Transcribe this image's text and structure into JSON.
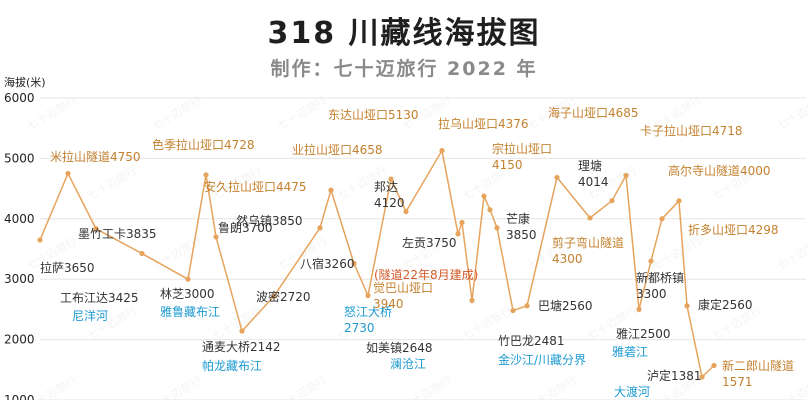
{
  "header": {
    "title": "318 川藏线海拔图",
    "subtitle": "制作：七十迈旅行 2022 年"
  },
  "watermark": "七十迈旅行",
  "chart_data": {
    "type": "line",
    "ylabel": "海拔(米)",
    "ylim": [
      1000,
      6000
    ],
    "yticks": [
      1000,
      2000,
      3000,
      4000,
      5000,
      6000
    ],
    "grid": true,
    "line_color": "#e6a35c",
    "points": [
      {
        "name": "拉萨",
        "value": 3650,
        "text": "拉萨3650",
        "style": "dark"
      },
      {
        "name": "米拉山隧道",
        "value": 4750,
        "text": "米拉山隧道4750",
        "style": "orange"
      },
      {
        "name": "墨竹工卡",
        "value": 3835,
        "text": "墨竹工卡3835",
        "style": "dark"
      },
      {
        "name": "工布江达",
        "value": 3425,
        "text": "工布江达3425",
        "style": "dark"
      },
      {
        "name": "林芝",
        "value": 3000,
        "text": "林芝3000",
        "style": "dark"
      },
      {
        "name": "色季拉山垭口",
        "value": 4728,
        "text": "色季拉山垭口4728",
        "style": "orange"
      },
      {
        "name": "鲁朗",
        "value": 3700,
        "text": "鲁朗3700",
        "style": "dark"
      },
      {
        "name": "通麦大桥",
        "value": 2142,
        "text": "通麦大桥2142",
        "style": "dark"
      },
      {
        "name": "波密",
        "value": 2720,
        "text": "波密2720",
        "style": "dark"
      },
      {
        "name": "然乌镇",
        "value": 3850,
        "text": "然乌镇3850",
        "style": "dark"
      },
      {
        "name": "安久拉山垭口",
        "value": 4475,
        "text": "安久拉山垭口4475",
        "style": "orange"
      },
      {
        "name": "八宿",
        "value": 3260,
        "text": "八宿3260",
        "style": "dark"
      },
      {
        "name": "怒江大桥",
        "value": 2730,
        "text": "怒江大桥\n2730",
        "style": "blue"
      },
      {
        "name": "业拉山垭口",
        "value": 4658,
        "text": "业拉山垭口4658",
        "style": "orange"
      },
      {
        "name": "邦达",
        "value": 4120,
        "text": "邦达\n4120",
        "style": "dark"
      },
      {
        "name": "东达山垭口",
        "value": 5130,
        "text": "东达山垭口5130",
        "style": "orange"
      },
      {
        "name": "左贡",
        "value": 3750,
        "text": "左贡3750",
        "style": "dark"
      },
      {
        "name": "觉巴山垭口",
        "value": 3940,
        "text": "觉巴山垭口\n3940",
        "style": "orange"
      },
      {
        "name": "如美镇",
        "value": 2648,
        "text": "如美镇2648",
        "style": "dark"
      },
      {
        "name": "拉乌山垭口",
        "value": 4376,
        "text": "拉乌山垭口4376",
        "style": "orange"
      },
      {
        "name": "宗拉山垭口",
        "value": 4150,
        "text": "宗拉山垭口\n4150",
        "style": "orange"
      },
      {
        "name": "芒康",
        "value": 3850,
        "text": "芒康\n3850",
        "style": "dark"
      },
      {
        "name": "竹巴龙",
        "value": 2481,
        "text": "竹巴龙2481",
        "style": "dark"
      },
      {
        "name": "巴塘",
        "value": 2560,
        "text": "巴塘2560",
        "style": "dark"
      },
      {
        "name": "海子山垭口",
        "value": 4685,
        "text": "海子山垭口4685",
        "style": "orange"
      },
      {
        "name": "理塘",
        "value": 4014,
        "text": "理塘\n4014",
        "style": "dark"
      },
      {
        "name": "剪子弯山隧道",
        "value": 4300,
        "text": "剪子弯山隧道\n4300",
        "style": "orange"
      },
      {
        "name": "卡子拉山垭口",
        "value": 4718,
        "text": "卡子拉山垭口4718",
        "style": "orange"
      },
      {
        "name": "雅江",
        "value": 2500,
        "text": "雅江2500",
        "style": "dark"
      },
      {
        "name": "新都桥镇",
        "value": 3300,
        "text": "新都桥镇\n3300",
        "style": "dark"
      },
      {
        "name": "高尔寺山隧道",
        "value": 4000,
        "text": "高尔寺山隧道4000",
        "style": "orange"
      },
      {
        "name": "折多山垭口",
        "value": 4298,
        "text": "折多山垭口4298",
        "style": "orange"
      },
      {
        "name": "康定",
        "value": 2560,
        "text": "康定2560",
        "style": "dark"
      },
      {
        "name": "泸定",
        "value": 1381,
        "text": "泸定1381",
        "style": "dark"
      },
      {
        "name": "新二郎山隧道",
        "value": 1571,
        "text": "新二郎山隧道\n1571",
        "style": "orange"
      }
    ],
    "annotations": [
      {
        "text": "尼洋河",
        "style": "blue"
      },
      {
        "text": "雅鲁藏布江",
        "style": "blue"
      },
      {
        "text": "帕龙藏布江",
        "style": "blue"
      },
      {
        "text": "(隧道22年8月建成)",
        "style": "red"
      },
      {
        "text": "澜沧江",
        "style": "blue"
      },
      {
        "text": "金沙江/川藏分界",
        "style": "blue"
      },
      {
        "text": "雅砻江",
        "style": "blue"
      },
      {
        "text": "大渡河",
        "style": "blue"
      }
    ]
  }
}
